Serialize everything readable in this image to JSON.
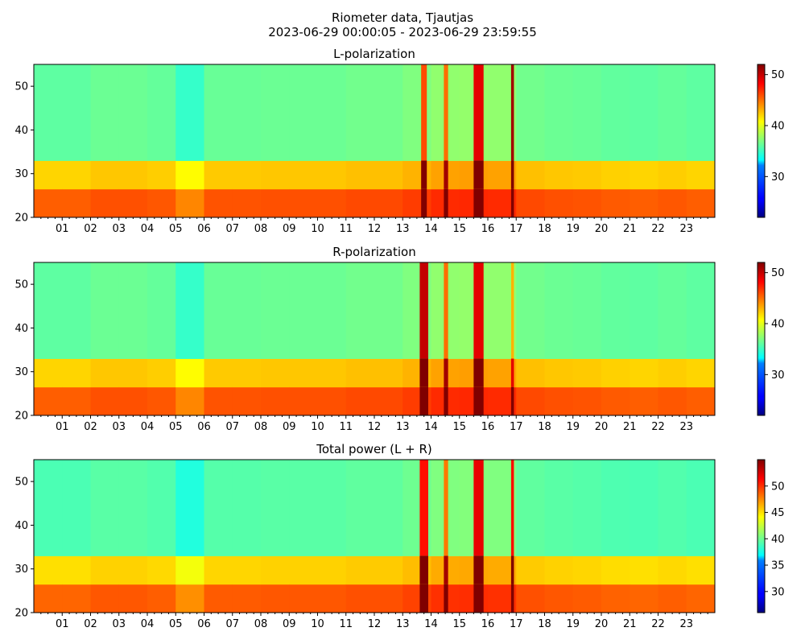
{
  "figure": {
    "title_line1": "Riometer data, Tjautjas",
    "title_line2": "2023-06-29 00:00:05 - 2023-06-29 23:59:55"
  },
  "chart_data": [
    {
      "type": "heatmap",
      "title": "L-polarization",
      "xlabel": "",
      "ylabel": "",
      "x_tick_labels": [
        "01",
        "02",
        "03",
        "04",
        "05",
        "06",
        "07",
        "08",
        "09",
        "10",
        "11",
        "12",
        "13",
        "14",
        "15",
        "16",
        "17",
        "18",
        "19",
        "20",
        "21",
        "22",
        "23"
      ],
      "xlim_hours": [
        0,
        24
      ],
      "y_ticks": [
        20,
        30,
        40,
        50
      ],
      "ylim": [
        20,
        55
      ],
      "colorscale": "jet",
      "colorbar": {
        "ticks": [
          30,
          40,
          50
        ],
        "range": [
          22,
          52
        ]
      },
      "zones": [
        {
          "from": 20,
          "to": 26.5,
          "value": 45.5
        },
        {
          "from": 26.5,
          "to": 33,
          "value": 42
        },
        {
          "from": 33,
          "to": 55,
          "value": 36
        }
      ],
      "hour_offsets": [
        0,
        0,
        0.4,
        0.4,
        0.2,
        -1.2,
        0.3,
        0.3,
        0.4,
        0.4,
        0.4,
        0.6,
        0.6,
        1,
        1.5,
        1.6,
        1.5,
        0.6,
        0.4,
        0.3,
        0.1,
        0,
        0.2,
        0
      ],
      "events": [
        {
          "x0": 13.65,
          "x1": 13.85,
          "delta": 10
        },
        {
          "x0": 14.45,
          "x1": 14.6,
          "delta": 9
        },
        {
          "x0": 15.5,
          "x1": 15.85,
          "delta": 13
        },
        {
          "x0": 16.82,
          "x1": 16.92,
          "delta": 15
        }
      ]
    },
    {
      "type": "heatmap",
      "title": "R-polarization",
      "xlabel": "",
      "ylabel": "",
      "x_tick_labels": [
        "01",
        "02",
        "03",
        "04",
        "05",
        "06",
        "07",
        "08",
        "09",
        "10",
        "11",
        "12",
        "13",
        "14",
        "15",
        "16",
        "17",
        "18",
        "19",
        "20",
        "21",
        "22",
        "23"
      ],
      "xlim_hours": [
        0,
        24
      ],
      "y_ticks": [
        20,
        30,
        40,
        50
      ],
      "ylim": [
        20,
        55
      ],
      "colorscale": "jet",
      "colorbar": {
        "ticks": [
          30,
          40,
          50
        ],
        "range": [
          22,
          52
        ]
      },
      "zones": [
        {
          "from": 20,
          "to": 26.5,
          "value": 45.5
        },
        {
          "from": 26.5,
          "to": 33,
          "value": 42
        },
        {
          "from": 33,
          "to": 55,
          "value": 36
        }
      ],
      "hour_offsets": [
        0,
        0,
        0.4,
        0.4,
        0.2,
        -1.2,
        0.3,
        0.3,
        0.4,
        0.4,
        0.4,
        0.6,
        0.6,
        1,
        1.5,
        1.6,
        1.5,
        0.6,
        0.4,
        0.3,
        0.1,
        0,
        0.2,
        0
      ],
      "events": [
        {
          "x0": 13.6,
          "x1": 13.9,
          "delta": 14
        },
        {
          "x0": 14.45,
          "x1": 14.6,
          "delta": 9
        },
        {
          "x0": 15.5,
          "x1": 15.85,
          "delta": 13
        },
        {
          "x0": 16.82,
          "x1": 16.92,
          "delta": 7
        }
      ]
    },
    {
      "type": "heatmap",
      "title": "Total power (L + R)",
      "xlabel": "",
      "ylabel": "",
      "x_tick_labels": [
        "01",
        "02",
        "03",
        "04",
        "05",
        "06",
        "07",
        "08",
        "09",
        "10",
        "11",
        "12",
        "13",
        "14",
        "15",
        "16",
        "17",
        "18",
        "19",
        "20",
        "21",
        "22",
        "23"
      ],
      "xlim_hours": [
        0,
        24
      ],
      "y_ticks": [
        20,
        30,
        40,
        50
      ],
      "ylim": [
        20,
        55
      ],
      "colorscale": "jet",
      "colorbar": {
        "ticks": [
          30,
          35,
          40,
          45,
          50
        ],
        "range": [
          26,
          55
        ]
      },
      "zones": [
        {
          "from": 20,
          "to": 26.5,
          "value": 48.5
        },
        {
          "from": 26.5,
          "to": 33,
          "value": 45
        },
        {
          "from": 33,
          "to": 55,
          "value": 39
        }
      ],
      "hour_offsets": [
        0,
        0,
        0.4,
        0.4,
        0.2,
        -1.2,
        0.3,
        0.3,
        0.4,
        0.4,
        0.4,
        0.6,
        0.6,
        1,
        1.5,
        1.6,
        1.5,
        0.6,
        0.4,
        0.3,
        0.1,
        0,
        0.2,
        0
      ],
      "events": [
        {
          "x0": 13.6,
          "x1": 13.9,
          "delta": 12
        },
        {
          "x0": 14.45,
          "x1": 14.6,
          "delta": 9
        },
        {
          "x0": 15.5,
          "x1": 15.85,
          "delta": 13
        },
        {
          "x0": 16.82,
          "x1": 16.92,
          "delta": 12
        }
      ]
    }
  ]
}
